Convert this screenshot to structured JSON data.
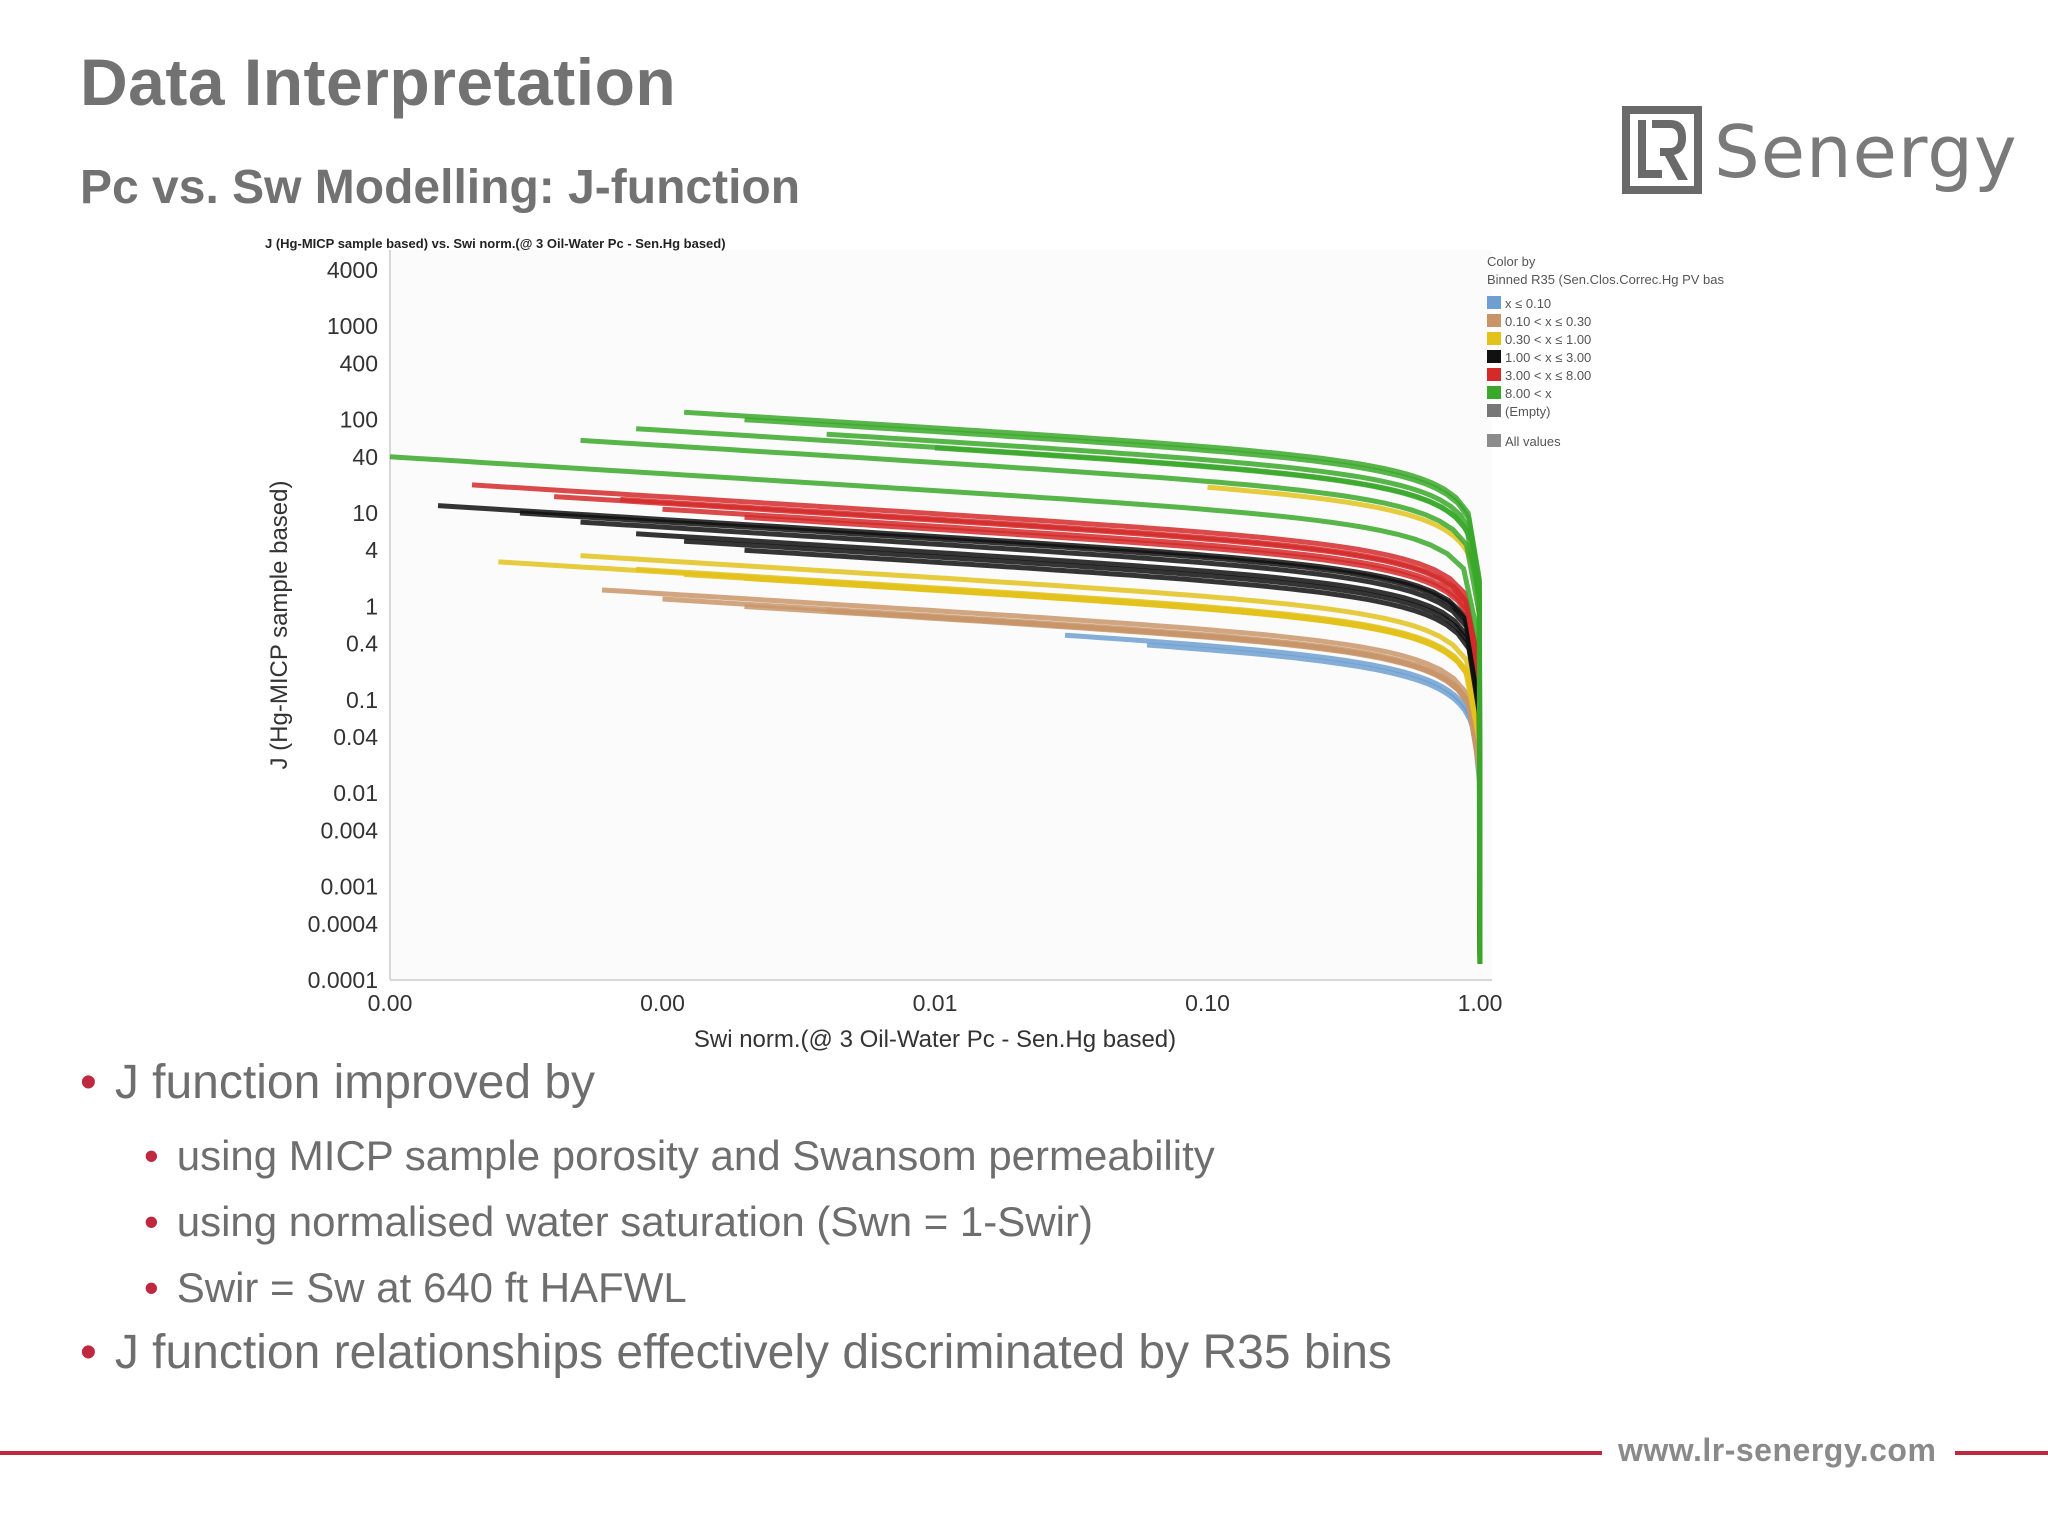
{
  "slide": {
    "title": "Data Interpretation",
    "subtitle": "Pc vs. Sw Modelling: J-function",
    "logo_text": "Senergy",
    "footer_url": "www.lr-senergy.com",
    "accent_color": "#c0283f"
  },
  "bullets": [
    {
      "level": 1,
      "text": "J function improved by"
    },
    {
      "level": 2,
      "text": "using MICP sample porosity and Swansom permeability"
    },
    {
      "level": 2,
      "text": "using normalised water saturation (Swn = 1-Swir)"
    },
    {
      "level": 2,
      "text": "Swir = Sw at 640 ft HAFWL"
    },
    {
      "level": 1,
      "text": "J function relationships effectively discriminated by R35 bins"
    }
  ],
  "chart_data": {
    "type": "line",
    "title": "J (Hg-MICP sample based) vs. Swi norm.(@ 3 Oil-Water Pc - Sen.Hg based)",
    "xlabel": "Swi norm.(@ 3 Oil-Water Pc - Sen.Hg based)",
    "ylabel": "J (Hg-MICP sample based)",
    "x_scale": "log",
    "y_scale": "log",
    "xlim": [
      0.0001,
      1.0
    ],
    "ylim": [
      0.0001,
      4000
    ],
    "x_ticks": [
      0.0001,
      0.001,
      0.01,
      0.1,
      1.0
    ],
    "x_tick_labels": [
      "0.00",
      "0.00",
      "0.01",
      "0.10",
      "1.00"
    ],
    "y_ticks": [
      4000,
      1000,
      400,
      100,
      40,
      10,
      4,
      1,
      0.4,
      0.1,
      0.04,
      0.01,
      0.004,
      0.001,
      0.0004,
      0.0001
    ],
    "y_tick_labels": [
      "4000",
      "1000",
      "400",
      "100",
      "40",
      "10",
      "4",
      "1",
      "0.4",
      "0.1",
      "0.04",
      "0.01",
      "0.004",
      "0.001",
      "0.0004",
      "0.0001"
    ],
    "legend": {
      "position": "top-right",
      "title_lines": [
        "Color by",
        "Binned R35 (Sen.Clos.Correc.Hg PV bas"
      ],
      "all_values_label": "All values",
      "all_values_color": "#8c8c8c"
    },
    "series": [
      {
        "name": "x ≤ 0.10",
        "color": "#6f9fd0",
        "curves": [
          {
            "start": 0.03,
            "j_plateau": 0.5
          },
          {
            "start": 0.06,
            "j_plateau": 0.4
          }
        ]
      },
      {
        "name": "0.10 < x ≤ 0.30",
        "color": "#c8956a",
        "curves": [
          {
            "start": 0.0006,
            "j_plateau": 1.5
          },
          {
            "start": 0.001,
            "j_plateau": 1.2
          },
          {
            "start": 0.002,
            "j_plateau": 1.0
          },
          {
            "start": 0.004,
            "j_plateau": 0.9
          },
          {
            "start": 0.008,
            "j_plateau": 0.8
          }
        ]
      },
      {
        "name": "0.30 < x ≤ 1.00",
        "color": "#e3c21c",
        "curves": [
          {
            "start": 0.00025,
            "j_plateau": 3.0
          },
          {
            "start": 0.0005,
            "j_plateau": 3.5
          },
          {
            "start": 0.0008,
            "j_plateau": 2.5
          },
          {
            "start": 0.0012,
            "j_plateau": 2.2
          },
          {
            "start": 0.002,
            "j_plateau": 2.0
          },
          {
            "start": 0.004,
            "j_plateau": 1.8
          },
          {
            "start": 0.1,
            "j_plateau": 20
          }
        ]
      },
      {
        "name": "1.00 < x ≤ 3.00",
        "color": "#111111",
        "curves": [
          {
            "start": 0.00015,
            "j_plateau": 12
          },
          {
            "start": 0.0003,
            "j_plateau": 10
          },
          {
            "start": 0.0005,
            "j_plateau": 8
          },
          {
            "start": 0.0008,
            "j_plateau": 6
          },
          {
            "start": 0.0012,
            "j_plateau": 5
          },
          {
            "start": 0.002,
            "j_plateau": 4
          }
        ]
      },
      {
        "name": "3.00 < x ≤ 8.00",
        "color": "#d42a2a",
        "curves": [
          {
            "start": 0.0002,
            "j_plateau": 20
          },
          {
            "start": 0.0004,
            "j_plateau": 15
          },
          {
            "start": 0.0007,
            "j_plateau": 14
          },
          {
            "start": 0.001,
            "j_plateau": 11
          },
          {
            "start": 0.002,
            "j_plateau": 9
          }
        ]
      },
      {
        "name": "8.00 < x",
        "color": "#3aa82a",
        "curves": [
          {
            "start": 0.0001,
            "j_plateau": 40
          },
          {
            "start": 0.0005,
            "j_plateau": 60
          },
          {
            "start": 0.0008,
            "j_plateau": 80
          },
          {
            "start": 0.0012,
            "j_plateau": 120
          },
          {
            "start": 0.002,
            "j_plateau": 100
          },
          {
            "start": 0.004,
            "j_plateau": 70
          },
          {
            "start": 0.01,
            "j_plateau": 50
          }
        ]
      },
      {
        "name": "(Empty)",
        "color": "#777777",
        "curves": []
      }
    ]
  }
}
